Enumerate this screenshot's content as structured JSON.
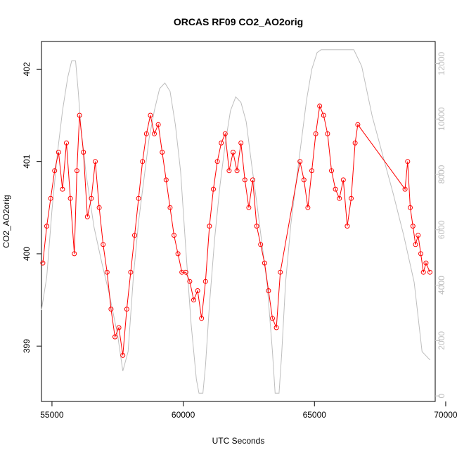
{
  "chart_data": {
    "type": "line",
    "title": "ORCAS RF09 CO2_AO2orig",
    "xlabel": "UTC Seconds",
    "ylabel": "CO2_AO2orig",
    "xlim": [
      54600,
      69600
    ],
    "ylim": [
      398.4,
      402.3
    ],
    "y2lim": [
      -200,
      12800
    ],
    "grid": false,
    "legend": "none",
    "x_ticks": [
      "55000",
      "60000",
      "65000",
      "70000"
    ],
    "x_tick_values": [
      55000,
      60000,
      65000,
      70000
    ],
    "y_ticks": [
      "399",
      "400",
      "401",
      "402"
    ],
    "y_tick_values": [
      399,
      400,
      401,
      402
    ],
    "y2_ticks": [
      "0",
      "2000",
      "4000",
      "6000",
      "8000",
      "10000",
      "12000"
    ],
    "y2_tick_values": [
      0,
      2000,
      4000,
      6000,
      8000,
      10000,
      12000
    ],
    "series": [
      {
        "axis": "left",
        "style": "line+points",
        "color": "#ff0000",
        "x": [
          54650,
          54800,
          54950,
          55100,
          55250,
          55400,
          55550,
          55700,
          55850,
          55950,
          56050,
          56200,
          56350,
          56500,
          56650,
          56800,
          56950,
          57100,
          57250,
          57400,
          57550,
          57700,
          57850,
          58000,
          58150,
          58300,
          58450,
          58600,
          58750,
          58900,
          59050,
          59200,
          59350,
          59500,
          59650,
          59800,
          59950,
          60100,
          60250,
          60400,
          60550,
          60700,
          60850,
          61000,
          61150,
          61300,
          61450,
          61600,
          61750,
          61900,
          62050,
          62200,
          62350,
          62500,
          62650,
          62800,
          62950,
          63100,
          63250,
          63400,
          63550,
          63700,
          64450,
          64600,
          64750,
          64900,
          65050,
          65200,
          65350,
          65500,
          65650,
          65800,
          65950,
          66100,
          66250,
          66400,
          66550,
          66650,
          68450,
          68550,
          68650,
          68750,
          68850,
          68950,
          69050,
          69150,
          69250,
          69400
        ],
        "y": [
          399.9,
          400.3,
          400.6,
          400.9,
          401.1,
          400.7,
          401.2,
          400.6,
          400.0,
          400.9,
          401.5,
          401.1,
          400.4,
          400.6,
          401.0,
          400.5,
          400.1,
          399.8,
          399.4,
          399.1,
          399.2,
          398.9,
          399.4,
          399.8,
          400.2,
          400.6,
          401.0,
          401.3,
          401.5,
          401.3,
          401.4,
          401.1,
          400.8,
          400.5,
          400.2,
          400.0,
          399.8,
          399.8,
          399.7,
          399.5,
          399.6,
          399.3,
          399.7,
          400.3,
          400.7,
          401.0,
          401.2,
          401.3,
          400.9,
          401.1,
          400.9,
          401.2,
          400.8,
          400.5,
          400.8,
          400.3,
          400.1,
          399.9,
          399.6,
          399.3,
          399.2,
          399.8,
          401.0,
          400.8,
          400.5,
          400.9,
          401.3,
          401.6,
          401.5,
          401.3,
          400.9,
          400.7,
          400.6,
          400.8,
          400.3,
          400.6,
          401.2,
          401.4,
          400.7,
          401.0,
          400.5,
          400.3,
          400.1,
          400.2,
          400.0,
          399.8,
          399.9,
          399.8
        ]
      },
      {
        "axis": "right",
        "style": "line",
        "color": "#bebebe",
        "x": [
          54600,
          54800,
          55000,
          55200,
          55400,
          55600,
          55750,
          55900,
          56000,
          56100,
          56300,
          56600,
          56900,
          57200,
          57500,
          57700,
          57900,
          58100,
          58300,
          58500,
          58700,
          58900,
          59100,
          59300,
          59500,
          59700,
          59900,
          60100,
          60300,
          60500,
          60600,
          60750,
          60850,
          61000,
          61200,
          61400,
          61600,
          61800,
          62000,
          62200,
          62400,
          62600,
          62800,
          63000,
          63200,
          63400,
          63500,
          63650,
          63750,
          63900,
          64100,
          64300,
          64500,
          64700,
          64900,
          65100,
          65250,
          65400,
          65700,
          66000,
          66500,
          66800,
          67200,
          67600,
          68000,
          68400,
          68800,
          69100,
          69400
        ],
        "y": [
          3100,
          4300,
          6700,
          8700,
          10300,
          11500,
          12100,
          12100,
          11000,
          9700,
          8000,
          6100,
          4800,
          3600,
          2200,
          900,
          1600,
          4300,
          6300,
          7800,
          9300,
          10300,
          11100,
          11300,
          11000,
          9800,
          8100,
          5300,
          2600,
          600,
          100,
          100,
          1100,
          3300,
          5700,
          7600,
          9100,
          10300,
          10800,
          10600,
          9900,
          8400,
          7000,
          5500,
          4000,
          1600,
          100,
          100,
          1500,
          4100,
          6200,
          7700,
          9200,
          10700,
          11800,
          12400,
          12500,
          12500,
          12500,
          12500,
          12500,
          11900,
          10100,
          8700,
          7300,
          5800,
          4100,
          1600,
          1300
        ]
      }
    ]
  }
}
